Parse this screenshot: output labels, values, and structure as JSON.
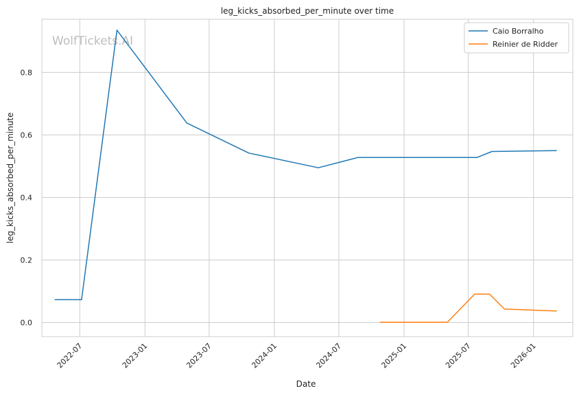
{
  "chart_data": {
    "type": "line",
    "title": "leg_kicks_absorbed_per_minute over time",
    "xlabel": "Date",
    "ylabel": "leg_kicks_absorbed_per_minute",
    "watermark": "WolfTickets.AI",
    "xlim": [
      "2022-03-16",
      "2026-04-22"
    ],
    "ylim": [
      -0.045,
      0.97
    ],
    "x_ticks": [
      "2022-07",
      "2023-01",
      "2023-07",
      "2024-01",
      "2024-07",
      "2025-01",
      "2025-07",
      "2026-01"
    ],
    "y_ticks": [
      "0.0",
      "0.2",
      "0.4",
      "0.6",
      "0.8"
    ],
    "grid": true,
    "legend_position": "top-right",
    "series": [
      {
        "name": "Caio Borralho",
        "color": "#1f77b4",
        "points": [
          {
            "x": "2022-04-22",
            "y": 0.073
          },
          {
            "x": "2022-07-06",
            "y": 0.073
          },
          {
            "x": "2022-10-14",
            "y": 0.935
          },
          {
            "x": "2023-04-29",
            "y": 0.638
          },
          {
            "x": "2023-10-21",
            "y": 0.542
          },
          {
            "x": "2024-05-04",
            "y": 0.495
          },
          {
            "x": "2024-08-24",
            "y": 0.528
          },
          {
            "x": "2025-07-26",
            "y": 0.528
          },
          {
            "x": "2025-09-06",
            "y": 0.547
          },
          {
            "x": "2026-03-07",
            "y": 0.55
          }
        ]
      },
      {
        "name": "Reinier de Ridder",
        "color": "#ff7f0e",
        "points": [
          {
            "x": "2024-10-26",
            "y": 0.001
          },
          {
            "x": "2025-05-03",
            "y": 0.001
          },
          {
            "x": "2025-07-19",
            "y": 0.091
          },
          {
            "x": "2025-08-30",
            "y": 0.091
          },
          {
            "x": "2025-10-11",
            "y": 0.043
          },
          {
            "x": "2026-03-07",
            "y": 0.037
          }
        ]
      }
    ]
  }
}
